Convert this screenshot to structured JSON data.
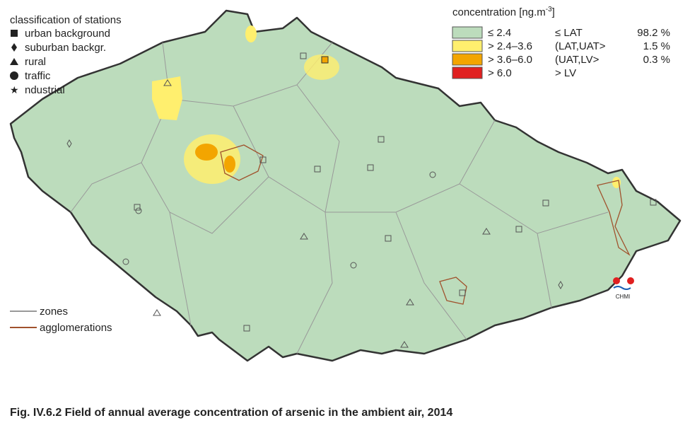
{
  "stations_legend": {
    "title": "classification of stations",
    "items": [
      "urban background",
      "suburban backgr.",
      "rural",
      "traffic",
      "ndustrial"
    ]
  },
  "concentration_legend": {
    "title": "concentration [ng.m",
    "title_sup": "-3",
    "title_end": "]",
    "rows": [
      [
        "≤ 2.4",
        "≤ LAT",
        "98.2 %"
      ],
      [
        "> 2.4–3.6",
        "(LAT,UAT>",
        "1.5 %"
      ],
      [
        "> 3.6–6.0",
        "(UAT,LV>",
        "0.3 %"
      ],
      [
        "> 6.0",
        "> LV",
        ""
      ]
    ]
  },
  "lines_legend": [
    "zones",
    "agglomerations"
  ],
  "logo": "CHMI",
  "caption": "Fig. IV.6.2  Field of annual average concentration of arsenic in the ambient air, 2014"
}
